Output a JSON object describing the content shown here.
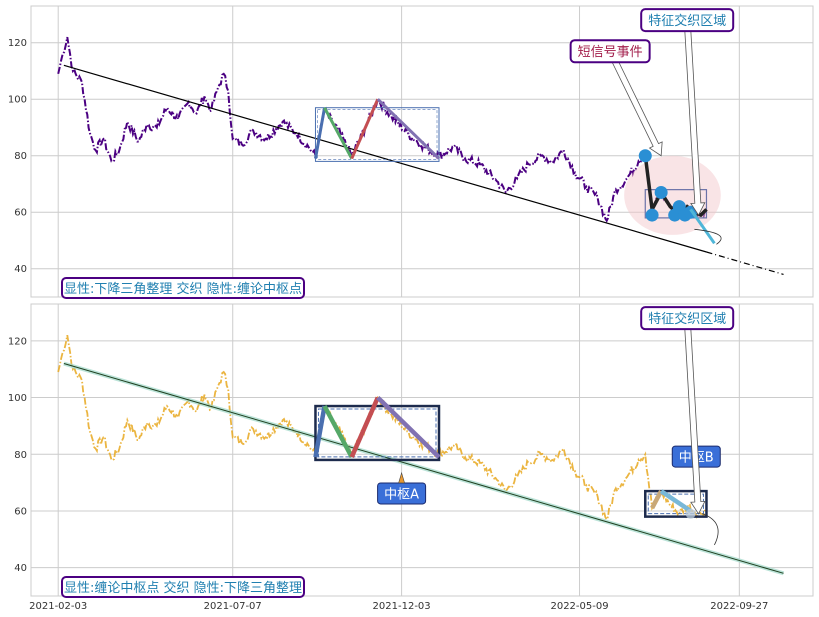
{
  "chart_data": [
    {
      "type": "line",
      "panel": "top",
      "series_color": "#4b0082",
      "trend_color": "#000000",
      "ylim": [
        30,
        133
      ],
      "yticks": [
        40,
        60,
        80,
        100,
        120
      ],
      "price_knots": [
        [
          "2021-02-03",
          109
        ],
        [
          "2021-02-07",
          116
        ],
        [
          "2021-02-11",
          122
        ],
        [
          "2021-02-16",
          110
        ],
        [
          "2021-02-24",
          106
        ],
        [
          "2021-03-03",
          88
        ],
        [
          "2021-03-08",
          82
        ],
        [
          "2021-03-15",
          86
        ],
        [
          "2021-03-22",
          78
        ],
        [
          "2021-03-29",
          82
        ],
        [
          "2021-04-05",
          92
        ],
        [
          "2021-04-15",
          85
        ],
        [
          "2021-04-22",
          91
        ],
        [
          "2021-05-01",
          90
        ],
        [
          "2021-05-10",
          97
        ],
        [
          "2021-05-20",
          93
        ],
        [
          "2021-05-29",
          99
        ],
        [
          "2021-06-05",
          95
        ],
        [
          "2021-06-12",
          101
        ],
        [
          "2021-06-18",
          96
        ],
        [
          "2021-06-24",
          104
        ],
        [
          "2021-06-29",
          109
        ],
        [
          "2021-07-03",
          103
        ],
        [
          "2021-07-07",
          86
        ],
        [
          "2021-07-15",
          84
        ],
        [
          "2021-07-25",
          89
        ],
        [
          "2021-08-05",
          86
        ],
        [
          "2021-08-20",
          92
        ],
        [
          "2021-09-01",
          88
        ],
        [
          "2021-09-12",
          83
        ],
        [
          "2021-09-18",
          80
        ],
        [
          "2021-09-26",
          96
        ],
        [
          "2021-10-08",
          89
        ],
        [
          "2021-10-20",
          80
        ],
        [
          "2021-11-01",
          90
        ],
        [
          "2021-11-12",
          100
        ],
        [
          "2021-11-24",
          94
        ],
        [
          "2021-12-08",
          88
        ],
        [
          "2021-12-20",
          84
        ],
        [
          "2022-01-05",
          80
        ],
        [
          "2022-01-18",
          83
        ],
        [
          "2022-01-28",
          79
        ],
        [
          "2022-02-10",
          77
        ],
        [
          "2022-02-25",
          71
        ],
        [
          "2022-03-05",
          67
        ],
        [
          "2022-03-15",
          72
        ],
        [
          "2022-03-25",
          77
        ],
        [
          "2022-04-05",
          80
        ],
        [
          "2022-04-15",
          78
        ],
        [
          "2022-04-25",
          82
        ],
        [
          "2022-05-05",
          74
        ],
        [
          "2022-05-15",
          69
        ],
        [
          "2022-05-25",
          65
        ],
        [
          "2022-06-02",
          57
        ],
        [
          "2022-06-10",
          68
        ],
        [
          "2022-06-20",
          72
        ],
        [
          "2022-06-30",
          78
        ],
        [
          "2022-07-06",
          80
        ],
        [
          "2022-07-12",
          61
        ],
        [
          "2022-07-20",
          67
        ],
        [
          "2022-07-28",
          62
        ],
        [
          "2022-08-05",
          59
        ],
        [
          "2022-08-12",
          62
        ],
        [
          "2022-08-18",
          60
        ],
        [
          "2022-08-24",
          59
        ],
        [
          "2022-08-29",
          61
        ]
      ],
      "trend_line": [
        [
          "2021-02-08",
          112
        ],
        [
          "2022-11-05",
          38
        ]
      ],
      "trend_style": "solid-then-dashed",
      "trend_break": "2022-08-29",
      "triangle_box": [
        [
          "2021-09-18",
          78
        ],
        [
          "2022-01-05",
          97
        ]
      ],
      "zigzag": [
        {
          "from": [
            "2021-09-18",
            79
          ],
          "to": [
            "2021-09-26",
            97
          ],
          "color": "#4a6fb0"
        },
        {
          "from": [
            "2021-09-26",
            97
          ],
          "to": [
            "2021-10-20",
            79
          ],
          "color": "#55a868"
        },
        {
          "from": [
            "2021-10-20",
            79
          ],
          "to": [
            "2021-11-12",
            100
          ],
          "color": "#c44e52"
        },
        {
          "from": [
            "2021-11-12",
            100
          ],
          "to": [
            "2022-01-05",
            79
          ],
          "color": "#8172b2"
        }
      ],
      "signal_circle": {
        "center": [
          "2022-07-30",
          66
        ],
        "radius_days": 25,
        "radius_y": 14
      },
      "signal_path": [
        [
          "2022-07-06",
          80
        ],
        [
          "2022-07-12",
          61
        ],
        [
          "2022-07-20",
          67
        ],
        [
          "2022-07-28",
          62
        ],
        [
          "2022-08-05",
          59
        ],
        [
          "2022-08-12",
          62
        ],
        [
          "2022-08-18",
          60
        ],
        [
          "2022-08-24",
          59
        ],
        [
          "2022-08-29",
          61
        ]
      ],
      "signal_points": [
        [
          "2022-07-06",
          80
        ],
        [
          "2022-07-12",
          59
        ],
        [
          "2022-07-20",
          67
        ],
        [
          "2022-08-01",
          59
        ],
        [
          "2022-08-05",
          62
        ],
        [
          "2022-08-10",
          59
        ],
        [
          "2022-08-15",
          60
        ]
      ],
      "cyan_segment": [
        [
          "2022-08-15",
          61
        ],
        [
          "2022-09-05",
          49
        ]
      ],
      "small_box": [
        [
          "2022-07-06",
          58
        ],
        [
          "2022-08-29",
          68
        ]
      ],
      "annotations": [
        {
          "text": "特征交织区域",
          "at": [
            "2022-08-12",
            128
          ],
          "color": "#1f7fb0",
          "arrow_to": [
            "2022-08-22",
            59
          ]
        },
        {
          "text": "短信号事件",
          "at": [
            "2022-06-05",
            117
          ],
          "color": "#a21d4a",
          "arrow_to": [
            "2022-07-20",
            80
          ]
        }
      ],
      "corner_label": "显性:下降三角整理 交织 隐性:缠论中枢点"
    },
    {
      "type": "line",
      "panel": "bottom",
      "series_color": "#e8a820",
      "trend_color": "#1f4020",
      "ylim": [
        30,
        133
      ],
      "yticks": [
        40,
        60,
        80,
        100,
        120
      ],
      "xticks": [
        "2021-02-03",
        "2021-07-07",
        "2021-12-03",
        "2022-05-09",
        "2022-09-27"
      ],
      "trend_line": [
        [
          "2021-02-08",
          112
        ],
        [
          "2022-11-05",
          38
        ]
      ],
      "zhongshu_A": {
        "box": [
          [
            "2021-09-18",
            78
          ],
          [
            "2022-01-05",
            97
          ]
        ],
        "label": "中枢A",
        "label_at": [
          "2021-12-03",
          66
        ]
      },
      "zhongshu_B": {
        "box": [
          [
            "2022-07-06",
            58
          ],
          [
            "2022-08-29",
            67
          ]
        ],
        "label": "中枢B",
        "label_at": [
          "2022-08-20",
          79
        ]
      },
      "zigzag": [
        {
          "from": [
            "2021-09-18",
            79
          ],
          "to": [
            "2021-09-26",
            97
          ],
          "color": "#4a6fb0"
        },
        {
          "from": [
            "2021-09-26",
            97
          ],
          "to": [
            "2021-10-20",
            79
          ],
          "color": "#55a868"
        },
        {
          "from": [
            "2021-10-20",
            79
          ],
          "to": [
            "2021-11-12",
            100
          ],
          "color": "#c44e52"
        },
        {
          "from": [
            "2021-11-12",
            100
          ],
          "to": [
            "2022-01-05",
            79
          ],
          "color": "#8172b2"
        },
        {
          "from": [
            "2022-07-12",
            61
          ],
          "to": [
            "2022-07-20",
            67
          ],
          "color": "#c8a878"
        },
        {
          "from": [
            "2022-07-20",
            67
          ],
          "to": [
            "2022-08-15",
            60
          ],
          "color": "#78b8d8"
        }
      ],
      "annotations": [
        {
          "text": "特征交织区域",
          "at": [
            "2022-08-12",
            128
          ],
          "color": "#1f7fb0",
          "arrow_to": [
            "2022-08-22",
            59
          ]
        }
      ],
      "corner_label": "显性:缠论中枢点 交织 隐性:下降三角整理"
    }
  ]
}
